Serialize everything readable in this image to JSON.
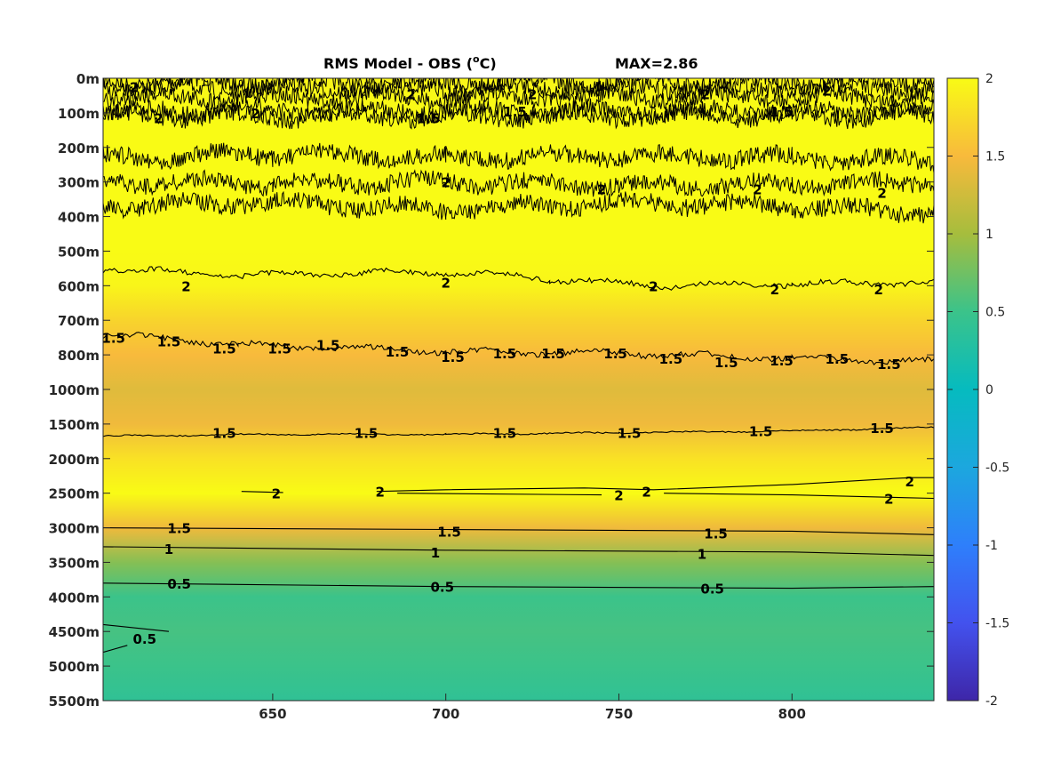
{
  "title": {
    "left": "RMS Model - OBS (",
    "sup": "o",
    "unit": "C)",
    "right": "MAX=2.86"
  },
  "chart_data": {
    "type": "heatmap",
    "title": "RMS Model - OBS (oC)",
    "annotation": "MAX=2.86",
    "xlabel": "",
    "ylabel": "",
    "xlim": [
      601,
      841
    ],
    "x_ticks": [
      650,
      700,
      750,
      800
    ],
    "y_categories": [
      "0m",
      "100m",
      "200m",
      "300m",
      "400m",
      "500m",
      "600m",
      "700m",
      "800m",
      "1000m",
      "1500m",
      "2000m",
      "2500m",
      "3000m",
      "3500m",
      "4000m",
      "4500m",
      "5000m",
      "5500m"
    ],
    "colormap": "parula",
    "clim": [
      -2,
      2
    ],
    "colorbar_ticks": [
      "2",
      "1.5",
      "1",
      "0.5",
      "0",
      "-0.5",
      "-1",
      "-1.5",
      "-2"
    ],
    "depth_profile_mean_rms": [
      {
        "depth": "0m",
        "value": 1.95
      },
      {
        "depth": "100m",
        "value": 2.0
      },
      {
        "depth": "200m",
        "value": 2.1
      },
      {
        "depth": "300m",
        "value": 2.1
      },
      {
        "depth": "400m",
        "value": 2.05
      },
      {
        "depth": "500m",
        "value": 2.1
      },
      {
        "depth": "600m",
        "value": 1.95
      },
      {
        "depth": "700m",
        "value": 1.7
      },
      {
        "depth": "800m",
        "value": 1.5
      },
      {
        "depth": "1000m",
        "value": 1.35
      },
      {
        "depth": "1500m",
        "value": 1.45
      },
      {
        "depth": "2000m",
        "value": 1.8
      },
      {
        "depth": "2500m",
        "value": 2.0
      },
      {
        "depth": "3000m",
        "value": 1.45
      },
      {
        "depth": "3500m",
        "value": 0.85
      },
      {
        "depth": "4000m",
        "value": 0.5
      },
      {
        "depth": "4500m",
        "value": 0.55
      },
      {
        "depth": "5000m",
        "value": 0.5
      },
      {
        "depth": "5500m",
        "value": 0.4
      }
    ],
    "contour_labels": [
      {
        "text": "2",
        "x": 610,
        "depth": 0.25
      },
      {
        "text": "2",
        "x": 690,
        "depth": 0.45
      },
      {
        "text": "1.5",
        "x": 720,
        "depth": 0.95
      },
      {
        "text": "2",
        "x": 725,
        "depth": 0.45
      },
      {
        "text": "2",
        "x": 775,
        "depth": 0.45
      },
      {
        "text": "2",
        "x": 810,
        "depth": 0.35
      },
      {
        "text": "1.5",
        "x": 797,
        "depth": 0.95
      },
      {
        "text": "1.5",
        "x": 695,
        "depth": 1.15
      },
      {
        "text": "2",
        "x": 617,
        "depth": 1.15
      },
      {
        "text": "2",
        "x": 645,
        "depth": 1.0
      },
      {
        "text": "2",
        "x": 700,
        "depth": 3.0
      },
      {
        "text": "2",
        "x": 745,
        "depth": 3.2
      },
      {
        "text": "2",
        "x": 790,
        "depth": 3.2
      },
      {
        "text": "2",
        "x": 826,
        "depth": 3.3
      },
      {
        "text": "2",
        "x": 625,
        "depth": 6.0
      },
      {
        "text": "2",
        "x": 700,
        "depth": 5.9
      },
      {
        "text": "2",
        "x": 760,
        "depth": 6.0
      },
      {
        "text": "2",
        "x": 795,
        "depth": 6.1
      },
      {
        "text": "2",
        "x": 825,
        "depth": 6.1
      },
      {
        "text": "1.5",
        "x": 604,
        "depth": 7.5
      },
      {
        "text": "1.5",
        "x": 620,
        "depth": 7.6
      },
      {
        "text": "1.5",
        "x": 636,
        "depth": 7.8
      },
      {
        "text": "1.5",
        "x": 652,
        "depth": 7.8
      },
      {
        "text": "1.5",
        "x": 666,
        "depth": 7.7
      },
      {
        "text": "1.5",
        "x": 686,
        "depth": 7.9
      },
      {
        "text": "1.5",
        "x": 702,
        "depth": 8.05
      },
      {
        "text": "1.5",
        "x": 717,
        "depth": 7.95
      },
      {
        "text": "1.5",
        "x": 731,
        "depth": 7.95
      },
      {
        "text": "1.5",
        "x": 749,
        "depth": 7.95
      },
      {
        "text": "1.5",
        "x": 765,
        "depth": 8.1
      },
      {
        "text": "1.5",
        "x": 781,
        "depth": 8.2
      },
      {
        "text": "1.5",
        "x": 797,
        "depth": 8.15
      },
      {
        "text": "1.5",
        "x": 813,
        "depth": 8.1
      },
      {
        "text": "1.5",
        "x": 828,
        "depth": 8.25
      },
      {
        "text": "1.5",
        "x": 636,
        "depth": 10.25
      },
      {
        "text": "1.5",
        "x": 677,
        "depth": 10.25
      },
      {
        "text": "1.5",
        "x": 717,
        "depth": 10.25
      },
      {
        "text": "1.5",
        "x": 753,
        "depth": 10.25
      },
      {
        "text": "1.5",
        "x": 791,
        "depth": 10.2
      },
      {
        "text": "1.5",
        "x": 826,
        "depth": 10.1
      },
      {
        "text": "2",
        "x": 651,
        "depth": 12.0
      },
      {
        "text": "2",
        "x": 681,
        "depth": 11.95
      },
      {
        "text": "2",
        "x": 750,
        "depth": 12.05
      },
      {
        "text": "2",
        "x": 758,
        "depth": 11.95
      },
      {
        "text": "2",
        "x": 834,
        "depth": 11.65
      },
      {
        "text": "2",
        "x": 828,
        "depth": 12.15
      },
      {
        "text": "1.5",
        "x": 623,
        "depth": 13.0
      },
      {
        "text": "1.5",
        "x": 701,
        "depth": 13.1
      },
      {
        "text": "1.5",
        "x": 778,
        "depth": 13.15
      },
      {
        "text": "1",
        "x": 620,
        "depth": 13.6
      },
      {
        "text": "1",
        "x": 697,
        "depth": 13.7
      },
      {
        "text": "1",
        "x": 774,
        "depth": 13.75
      },
      {
        "text": "0.5",
        "x": 623,
        "depth": 14.6
      },
      {
        "text": "0.5",
        "x": 699,
        "depth": 14.7
      },
      {
        "text": "0.5",
        "x": 777,
        "depth": 14.75
      },
      {
        "text": "0.5",
        "x": 613,
        "depth": 16.2
      }
    ],
    "contour_lines": [
      {
        "level": 2,
        "noise": "heavy",
        "points": [
          [
            601,
            0.1
          ],
          [
            841,
            0.1
          ]
        ]
      },
      {
        "level": 2,
        "noise": "heavy",
        "points": [
          [
            601,
            0.3
          ],
          [
            841,
            0.3
          ]
        ]
      },
      {
        "level": 2,
        "noise": "heavy",
        "points": [
          [
            601,
            0.55
          ],
          [
            841,
            0.55
          ]
        ]
      },
      {
        "level": 2,
        "noise": "heavy",
        "points": [
          [
            601,
            0.95
          ],
          [
            841,
            0.95
          ]
        ]
      },
      {
        "level": 2,
        "noise": "heavy",
        "points": [
          [
            601,
            1.1
          ],
          [
            841,
            1.1
          ]
        ]
      },
      {
        "level": 2,
        "noise": "heavy",
        "points": [
          [
            601,
            2.3
          ],
          [
            650,
            2.2
          ],
          [
            700,
            2.3
          ],
          [
            750,
            2.25
          ],
          [
            800,
            2.3
          ],
          [
            841,
            2.4
          ]
        ]
      },
      {
        "level": 2,
        "noise": "heavy",
        "points": [
          [
            601,
            3.0
          ],
          [
            650,
            3.05
          ],
          [
            700,
            3.0
          ],
          [
            750,
            3.1
          ],
          [
            800,
            3.05
          ],
          [
            841,
            3.0
          ]
        ]
      },
      {
        "level": 2,
        "noise": "heavy",
        "points": [
          [
            601,
            3.7
          ],
          [
            650,
            3.6
          ],
          [
            700,
            3.8
          ],
          [
            750,
            3.6
          ],
          [
            800,
            3.7
          ],
          [
            841,
            3.9
          ]
        ]
      },
      {
        "level": 2,
        "noise": "medium",
        "points": [
          [
            601,
            5.5
          ],
          [
            640,
            5.7
          ],
          [
            700,
            5.6
          ],
          [
            730,
            5.8
          ],
          [
            760,
            6.0
          ],
          [
            800,
            5.95
          ],
          [
            841,
            5.9
          ]
        ]
      },
      {
        "level": 1.5,
        "noise": "medium",
        "points": [
          [
            601,
            7.4
          ],
          [
            640,
            7.7
          ],
          [
            700,
            7.9
          ],
          [
            750,
            7.95
          ],
          [
            800,
            8.1
          ],
          [
            841,
            8.2
          ]
        ]
      },
      {
        "level": 1.5,
        "noise": "fine",
        "points": [
          [
            601,
            10.35
          ],
          [
            650,
            10.3
          ],
          [
            700,
            10.3
          ],
          [
            750,
            10.25
          ],
          [
            800,
            10.2
          ],
          [
            841,
            10.1
          ]
        ]
      },
      {
        "level": 2,
        "noise": "none",
        "points": [
          [
            641,
            11.95
          ],
          [
            653,
            11.98
          ]
        ]
      },
      {
        "level": 2,
        "noise": "none",
        "points": [
          [
            680,
            11.95
          ],
          [
            700,
            11.9
          ],
          [
            740,
            11.85
          ],
          [
            760,
            11.9
          ],
          [
            800,
            11.75
          ],
          [
            834,
            11.55
          ],
          [
            841,
            11.55
          ]
        ]
      },
      {
        "level": 2,
        "noise": "none",
        "points": [
          [
            686,
            12.0
          ],
          [
            745,
            12.05
          ]
        ]
      },
      {
        "level": 2,
        "noise": "none",
        "points": [
          [
            763,
            12.0
          ],
          [
            800,
            12.05
          ],
          [
            841,
            12.15
          ]
        ]
      },
      {
        "level": 1.5,
        "noise": "none",
        "points": [
          [
            601,
            13.0
          ],
          [
            700,
            13.05
          ],
          [
            800,
            13.1
          ],
          [
            841,
            13.2
          ]
        ]
      },
      {
        "level": 1,
        "noise": "none",
        "points": [
          [
            601,
            13.55
          ],
          [
            700,
            13.65
          ],
          [
            800,
            13.7
          ],
          [
            841,
            13.8
          ]
        ]
      },
      {
        "level": 0.5,
        "noise": "none",
        "points": [
          [
            601,
            14.6
          ],
          [
            700,
            14.7
          ],
          [
            800,
            14.75
          ],
          [
            841,
            14.7
          ]
        ]
      },
      {
        "level": 0.5,
        "noise": "none",
        "points": [
          [
            601,
            15.8
          ],
          [
            620,
            16.0
          ]
        ]
      },
      {
        "level": 0.5,
        "noise": "none",
        "points": [
          [
            601,
            16.6
          ],
          [
            608,
            16.4
          ]
        ]
      }
    ]
  },
  "colors": {
    "plot_border": "#262626",
    "contour": "#000000"
  }
}
